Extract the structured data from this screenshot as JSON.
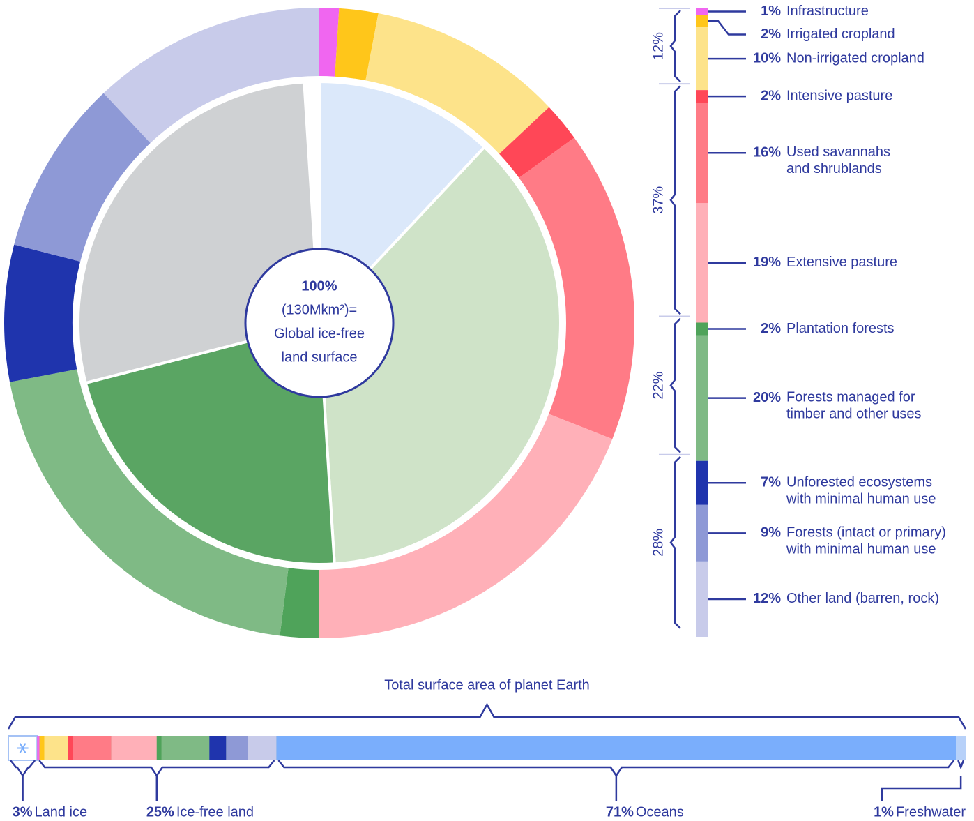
{
  "chart_data": [
    {
      "type": "donut",
      "center_text": [
        "100%",
        "(130Mkm²)=",
        "Global ice-free",
        "land surface"
      ],
      "categories": [
        "Infrastructure",
        "Irrigated cropland",
        "Non-irrigated cropland",
        "Intensive pasture",
        "Used savannahs\nand shrublands",
        "Extensive pasture",
        "Plantation forests",
        "Forests managed for\ntimber and other uses",
        "Unforested ecosystems\nwith minimal human use",
        "Forests (intact or primary)\nwith minimal human use",
        "Other land (barren, rock)"
      ],
      "values": [
        1,
        2,
        10,
        2,
        16,
        19,
        2,
        20,
        7,
        9,
        12
      ],
      "value_labels": [
        "1%",
        "2%",
        "10%",
        "2%",
        "16%",
        "19%",
        "2%",
        "20%",
        "7%",
        "9%",
        "12%"
      ],
      "colors": [
        "#f066f0",
        "#ffc61a",
        "#fde38a",
        "#ff4757",
        "#ff7b86",
        "#ffb0b8",
        "#4fa35a",
        "#7fba85",
        "#1f34ad",
        "#8e99d6",
        "#c8cbea"
      ],
      "groups": [
        {
          "value": 12,
          "label": "12%"
        },
        {
          "value": 37,
          "label": "37%"
        },
        {
          "value": 22,
          "label": "22%"
        },
        {
          "value": 28,
          "label": "28%"
        }
      ]
    },
    {
      "type": "stacked-bar",
      "title": "Total surface area of planet Earth",
      "categories": [
        "Land ice",
        "Ice-free land",
        "Oceans",
        "Freshwater"
      ],
      "values": [
        3,
        25,
        71,
        1
      ],
      "value_labels": [
        "3%",
        "25%",
        "71%",
        "1%"
      ],
      "colors": [
        "#ffffff",
        "#7fba85",
        "#7aaefc",
        "#b7d1f9"
      ]
    }
  ]
}
